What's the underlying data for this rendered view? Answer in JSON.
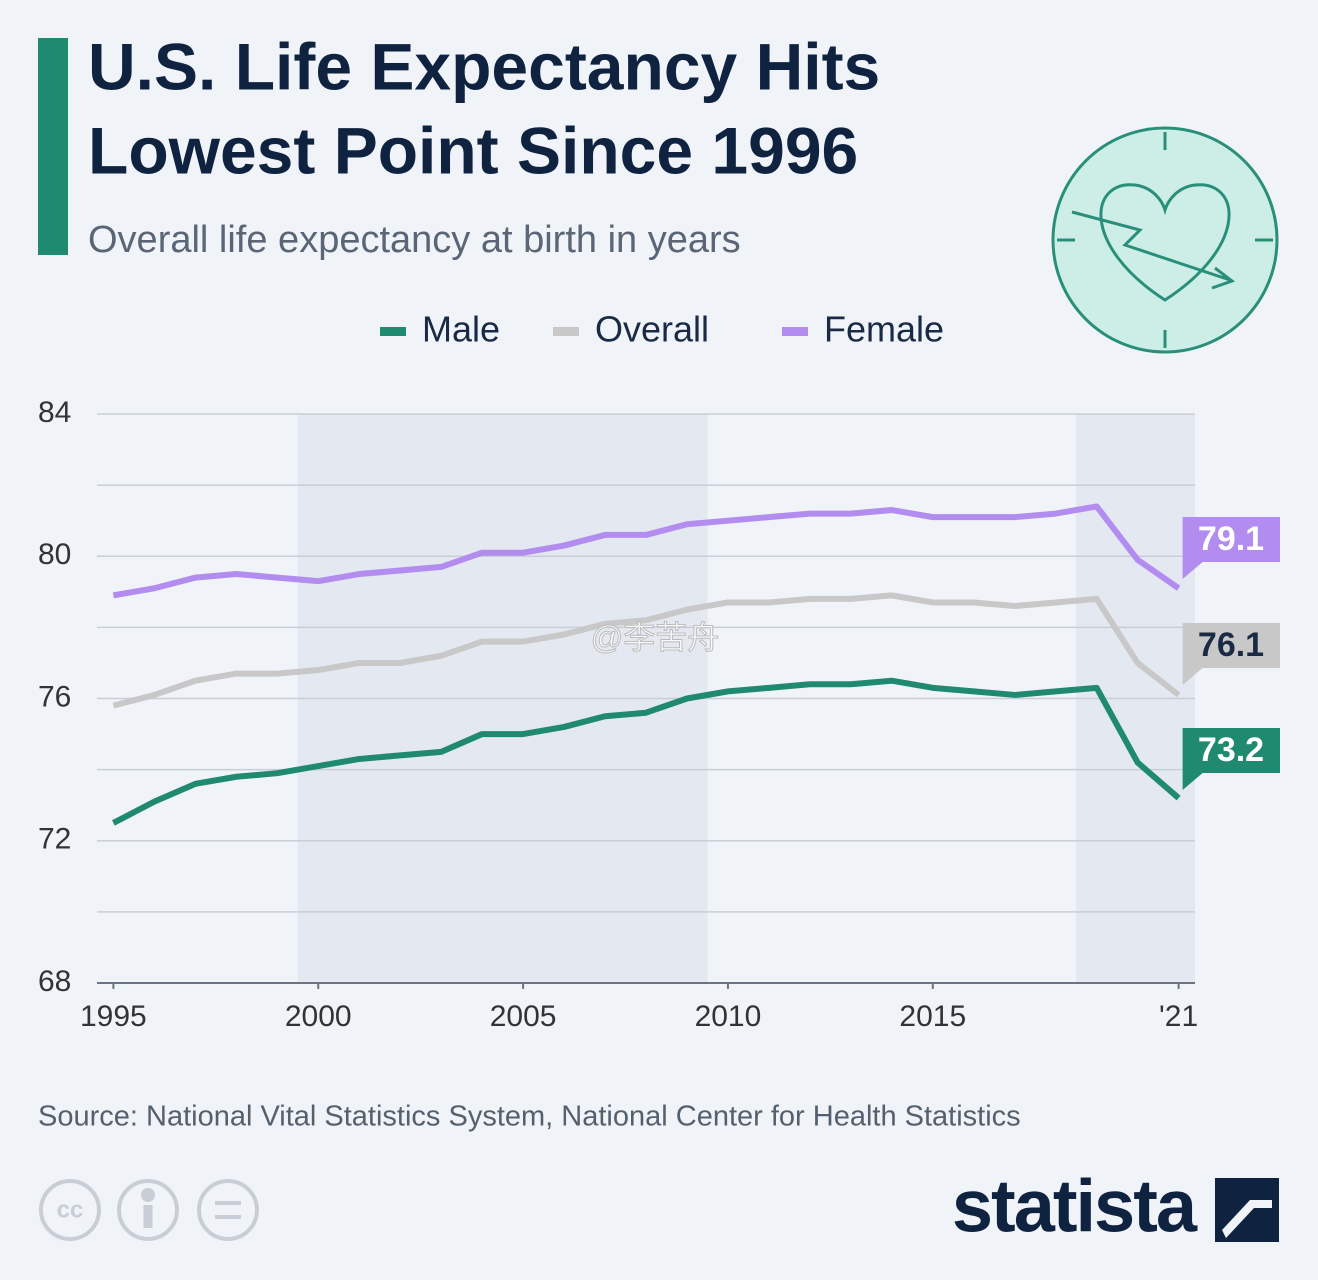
{
  "chart_data": {
    "type": "line",
    "title": [
      "U.S. Life Expectancy Hits",
      "Lowest Point Since 1996"
    ],
    "subtitle": "Overall life expectancy at birth in years",
    "x": [
      1995,
      1996,
      1997,
      1998,
      1999,
      2000,
      2001,
      2002,
      2003,
      2004,
      2005,
      2006,
      2007,
      2008,
      2009,
      2010,
      2011,
      2012,
      2013,
      2014,
      2015,
      2016,
      2017,
      2018,
      2019,
      2020,
      2021
    ],
    "series": [
      {
        "name": "Male",
        "color": "#1f8a70",
        "values": [
          72.5,
          73.1,
          73.6,
          73.8,
          73.9,
          74.1,
          74.3,
          74.4,
          74.5,
          75.0,
          75.0,
          75.2,
          75.5,
          75.6,
          76.0,
          76.2,
          76.3,
          76.4,
          76.4,
          76.5,
          76.3,
          76.2,
          76.1,
          76.2,
          76.3,
          74.2,
          73.2
        ]
      },
      {
        "name": "Overall",
        "color": "#c8c8c8",
        "values": [
          75.8,
          76.1,
          76.5,
          76.7,
          76.7,
          76.8,
          77.0,
          77.0,
          77.2,
          77.6,
          77.6,
          77.8,
          78.1,
          78.2,
          78.5,
          78.7,
          78.7,
          78.8,
          78.8,
          78.9,
          78.7,
          78.7,
          78.6,
          78.7,
          78.8,
          77.0,
          76.1
        ]
      },
      {
        "name": "Female",
        "color": "#b38cf0",
        "values": [
          78.9,
          79.1,
          79.4,
          79.5,
          79.4,
          79.3,
          79.5,
          79.6,
          79.7,
          80.1,
          80.1,
          80.3,
          80.6,
          80.6,
          80.9,
          81.0,
          81.1,
          81.2,
          81.2,
          81.3,
          81.1,
          81.1,
          81.1,
          81.2,
          81.4,
          79.9,
          79.1
        ]
      }
    ],
    "xlim": [
      1994.6,
      2021.4
    ],
    "xticks": [
      1995,
      2000,
      2005,
      2010,
      2015,
      {
        "value": 2021,
        "label": "'21"
      }
    ],
    "ylim": [
      68,
      84
    ],
    "yticks": [
      68,
      72,
      76,
      80,
      84
    ],
    "minor_yticks": [
      70,
      74,
      78,
      82
    ],
    "grid": true,
    "shaded_ranges": [
      [
        1999.5,
        2009.5
      ],
      [
        2018.5,
        2021.4
      ]
    ],
    "legend": "top",
    "source": "Source: National Vital Statistics System, National Center for Health Statistics",
    "brand": "statista",
    "watermark": "@李苦舟"
  }
}
